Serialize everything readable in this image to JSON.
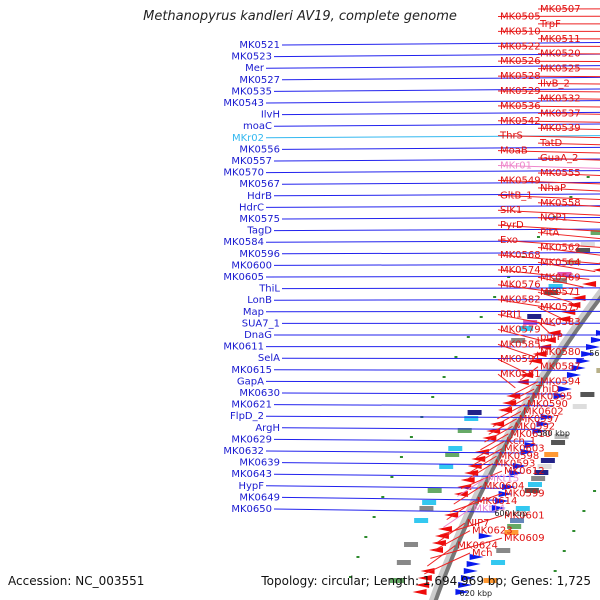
{
  "title": "Methanopyrus kandleri AV19, complete genome",
  "accession": "Accession: NC_003551",
  "topology": "Topology: circular; Length: 1,694,969 bp; Genes: 1,725",
  "colors": {
    "forward_strand": "#0a1aee",
    "reverse_strand": "#ee0a0a",
    "rna": "#33c8f0",
    "pseudo": "#ff99dd",
    "backbone": "#777777",
    "ticks": "#2e8b2e"
  },
  "kbp_marks": [
    "480 kbp",
    "500 kbp",
    "520 kbp",
    "540 kbp",
    "560 kbp",
    "580 kbp",
    "600 kbp",
    "620 kbp"
  ],
  "left_labels": [
    {
      "text": "MK0521",
      "color": "blue"
    },
    {
      "text": "MK0523",
      "color": "blue"
    },
    {
      "text": "Mer",
      "color": "blue"
    },
    {
      "text": "MK0527",
      "color": "blue"
    },
    {
      "text": "MK0535",
      "color": "blue"
    },
    {
      "text": "MK0543",
      "color": "blue"
    },
    {
      "text": "IlvH",
      "color": "blue"
    },
    {
      "text": "moaC",
      "color": "blue"
    },
    {
      "text": "MKr02",
      "color": "cyan"
    },
    {
      "text": "MK0556",
      "color": "blue"
    },
    {
      "text": "MK0557",
      "color": "blue"
    },
    {
      "text": "MK0570",
      "color": "blue"
    },
    {
      "text": "MK0567",
      "color": "blue"
    },
    {
      "text": "HdrB",
      "color": "blue"
    },
    {
      "text": "HdrC",
      "color": "blue"
    },
    {
      "text": "MK0575",
      "color": "blue"
    },
    {
      "text": "TagD",
      "color": "blue"
    },
    {
      "text": "MK0584",
      "color": "blue"
    },
    {
      "text": "MK0596",
      "color": "blue"
    },
    {
      "text": "MK0600",
      "color": "blue"
    },
    {
      "text": "MK0605",
      "color": "blue"
    },
    {
      "text": "ThiL",
      "color": "blue"
    },
    {
      "text": "LonB",
      "color": "blue"
    },
    {
      "text": "Map",
      "color": "blue"
    },
    {
      "text": "SUA7_1",
      "color": "blue"
    },
    {
      "text": "DnaG",
      "color": "blue"
    },
    {
      "text": "MK0611",
      "color": "blue"
    },
    {
      "text": "SelA",
      "color": "blue"
    },
    {
      "text": "MK0615",
      "color": "blue"
    },
    {
      "text": "GapA",
      "color": "blue"
    },
    {
      "text": "MK0630",
      "color": "blue"
    },
    {
      "text": "MK0621",
      "color": "blue"
    },
    {
      "text": "FlpD_2",
      "color": "blue"
    },
    {
      "text": "ArgH",
      "color": "blue"
    },
    {
      "text": "MK0629",
      "color": "blue"
    },
    {
      "text": "MK0632",
      "color": "blue"
    },
    {
      "text": "MK0639",
      "color": "blue"
    },
    {
      "text": "MK0643",
      "color": "blue"
    },
    {
      "text": "HypF",
      "color": "blue"
    },
    {
      "text": "MK0649",
      "color": "blue"
    },
    {
      "text": "MK0650",
      "color": "blue"
    }
  ],
  "right_labels": [
    {
      "text": "MK0507",
      "color": "red"
    },
    {
      "text": "MK0505",
      "color": "red"
    },
    {
      "text": "TrpF",
      "color": "red"
    },
    {
      "text": "MK0510",
      "color": "red"
    },
    {
      "text": "MK0511",
      "color": "red"
    },
    {
      "text": "MK0522",
      "color": "red"
    },
    {
      "text": "MK0520",
      "color": "red"
    },
    {
      "text": "MK0526",
      "color": "red"
    },
    {
      "text": "MK0525",
      "color": "red"
    },
    {
      "text": "MK0528",
      "color": "red"
    },
    {
      "text": "IlvB_2",
      "color": "red"
    },
    {
      "text": "MK0529",
      "color": "red"
    },
    {
      "text": "MK0532",
      "color": "red"
    },
    {
      "text": "MK0536",
      "color": "red"
    },
    {
      "text": "MK0537",
      "color": "red"
    },
    {
      "text": "MK0542",
      "color": "red"
    },
    {
      "text": "MK0539",
      "color": "red"
    },
    {
      "text": "ThrS",
      "color": "red"
    },
    {
      "text": "TatD",
      "color": "red"
    },
    {
      "text": "MoaB",
      "color": "red"
    },
    {
      "text": "GuaA_2",
      "color": "red"
    },
    {
      "text": "MKr01",
      "color": "pink"
    },
    {
      "text": "MK0555",
      "color": "red"
    },
    {
      "text": "MK0549",
      "color": "red"
    },
    {
      "text": "NhaP",
      "color": "red"
    },
    {
      "text": "GltB_1",
      "color": "red"
    },
    {
      "text": "MK0558",
      "color": "red"
    },
    {
      "text": "SIK1",
      "color": "red"
    },
    {
      "text": "NOP1",
      "color": "red"
    },
    {
      "text": "PyrD",
      "color": "red"
    },
    {
      "text": "PitA",
      "color": "red"
    },
    {
      "text": "Exo",
      "color": "red"
    },
    {
      "text": "MK0562",
      "color": "red"
    },
    {
      "text": "MK0568",
      "color": "red"
    },
    {
      "text": "MK0564",
      "color": "red"
    },
    {
      "text": "MK0574",
      "color": "red"
    },
    {
      "text": "MK0569",
      "color": "red"
    },
    {
      "text": "MK0576",
      "color": "red"
    },
    {
      "text": "MK0571",
      "color": "red"
    },
    {
      "text": "MK0582",
      "color": "red"
    },
    {
      "text": "MK0577",
      "color": "red"
    },
    {
      "text": "PRI1",
      "color": "red"
    },
    {
      "text": "MK0583",
      "color": "red"
    },
    {
      "text": "MK0579",
      "color": "red"
    },
    {
      "text": "purP",
      "color": "red"
    },
    {
      "text": "MK0585",
      "color": "red"
    },
    {
      "text": "MK0580",
      "color": "red"
    },
    {
      "text": "MK0591",
      "color": "red"
    },
    {
      "text": "MK0587",
      "color": "red"
    },
    {
      "text": "MK0581",
      "color": "red"
    },
    {
      "text": "MK0594",
      "color": "red"
    },
    {
      "text": "ThiD",
      "color": "red"
    },
    {
      "text": "MK0595",
      "color": "red"
    },
    {
      "text": "MK0590",
      "color": "red"
    },
    {
      "text": "MK0602",
      "color": "red"
    },
    {
      "text": "MK0597",
      "color": "red"
    },
    {
      "text": "MK0592",
      "color": "red"
    },
    {
      "text": "MK0610",
      "color": "red"
    },
    {
      "text": "Kch_1",
      "color": "red"
    },
    {
      "text": "MK0603",
      "color": "red"
    },
    {
      "text": "MK0598",
      "color": "red"
    },
    {
      "text": "MK0593",
      "color": "red"
    },
    {
      "text": "MK0612",
      "color": "red"
    },
    {
      "text": "MKt15",
      "color": "pink"
    },
    {
      "text": "MK0604",
      "color": "red"
    },
    {
      "text": "MK0599",
      "color": "red"
    },
    {
      "text": "MK0614",
      "color": "red"
    },
    {
      "text": "MKt14",
      "color": "pink"
    },
    {
      "text": "MK0601",
      "color": "red"
    },
    {
      "text": "NIP7",
      "color": "red"
    },
    {
      "text": "MK0623",
      "color": "red"
    },
    {
      "text": "MK0609",
      "color": "red"
    },
    {
      "text": "MK0624",
      "color": "red"
    },
    {
      "text": "Mch",
      "color": "red"
    }
  ]
}
